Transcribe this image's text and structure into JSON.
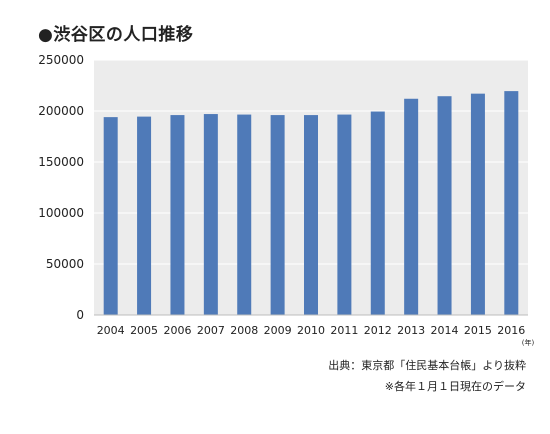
{
  "title": "●渋谷区の人口推移",
  "source_note": "出典：東京都「住民基本台帳」より抜粋",
  "date_note": "※各年１月１日現在のデータ",
  "chart_data": {
    "type": "bar",
    "title": "●渋谷区の人口推移",
    "x_unit_label": "(年)",
    "categories": [
      "2004",
      "2005",
      "2006",
      "2007",
      "2008",
      "2009",
      "2010",
      "2011",
      "2012",
      "2013",
      "2014",
      "2015",
      "2016"
    ],
    "values": [
      194000,
      194500,
      196000,
      197000,
      196500,
      196000,
      196000,
      196500,
      199500,
      212000,
      214500,
      217000,
      219500
    ],
    "ylim": [
      0,
      250000
    ],
    "yticks": [
      0,
      50000,
      100000,
      150000,
      200000,
      250000
    ],
    "grid": true,
    "legend": "none",
    "colors": {
      "bar": "#4f7ab8",
      "plot_background": "#ececec",
      "grid": "#ffffff"
    }
  }
}
